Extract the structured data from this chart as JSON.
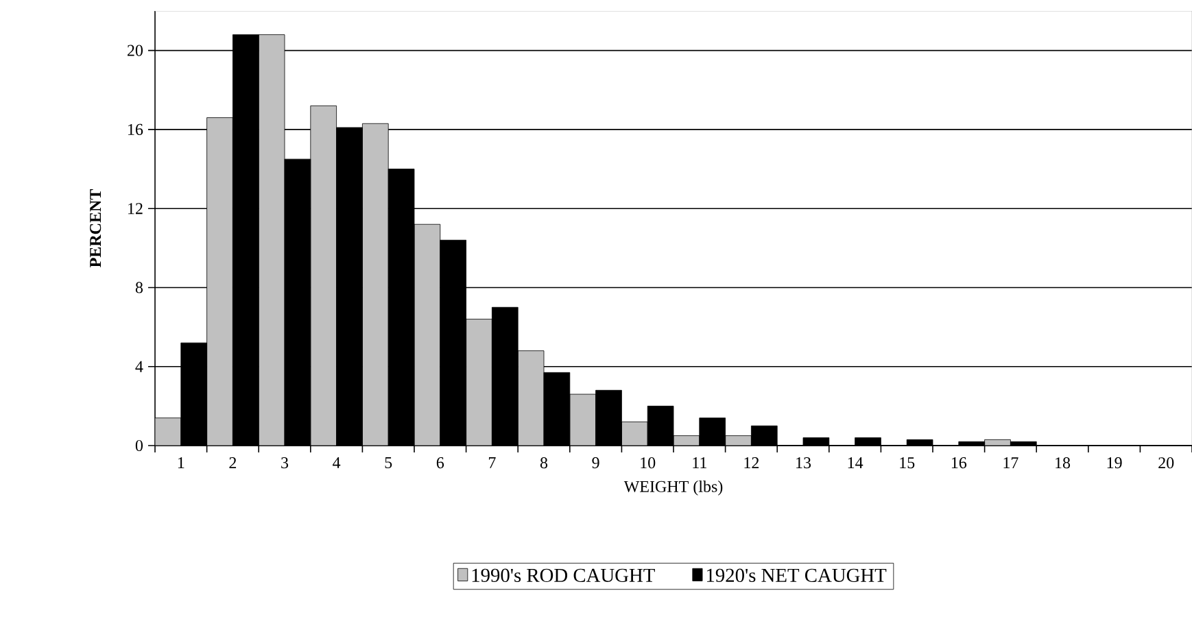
{
  "chart_data": {
    "type": "bar",
    "xlabel": "WEIGHT (lbs)",
    "ylabel": "PERCENT",
    "categories": [
      "1",
      "2",
      "3",
      "4",
      "5",
      "6",
      "7",
      "8",
      "9",
      "10",
      "11",
      "12",
      "13",
      "14",
      "15",
      "16",
      "17",
      "18",
      "19",
      "20"
    ],
    "series": [
      {
        "name": "1990's ROD CAUGHT",
        "color": "#c0c0c0",
        "values": [
          1.4,
          16.6,
          20.8,
          17.2,
          16.3,
          11.2,
          6.4,
          4.8,
          2.6,
          1.2,
          0.5,
          0.5,
          0,
          0,
          0,
          0,
          0.3,
          0,
          0,
          0
        ]
      },
      {
        "name": "1920's NET CAUGHT",
        "color": "#000000",
        "values": [
          5.2,
          20.8,
          14.5,
          16.1,
          14.0,
          10.4,
          7.0,
          3.7,
          2.8,
          2.0,
          1.4,
          1.0,
          0.4,
          0.4,
          0.3,
          0.2,
          0.2,
          0,
          0,
          0
        ]
      }
    ],
    "ylim": [
      0,
      22
    ],
    "yticks": [
      0,
      4,
      8,
      12,
      16,
      20
    ],
    "grid": "y",
    "legend": "bottom"
  }
}
